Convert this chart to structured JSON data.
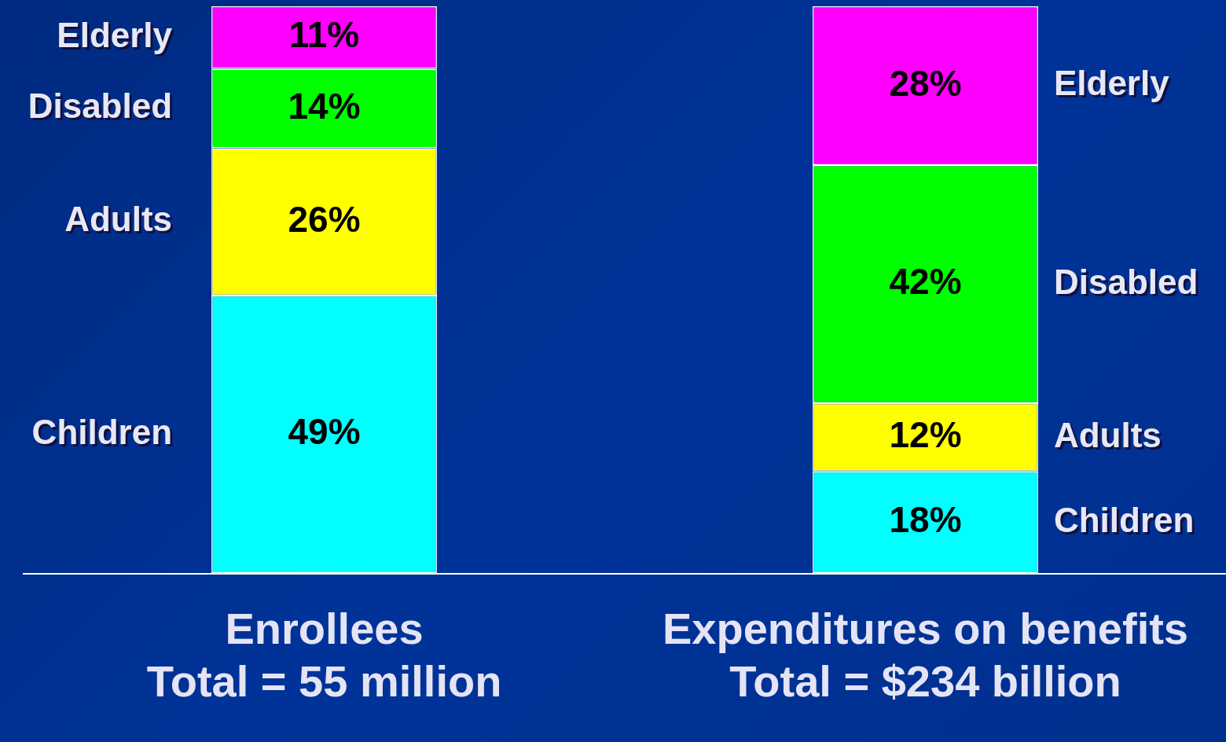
{
  "chart_data": {
    "type": "bar",
    "stacked": true,
    "ylim": [
      0,
      100
    ],
    "tick_labels": "x",
    "categories": [
      "Enrollees\nTotal = 55 million",
      "Expenditures on benefits\nTotal = $234 billion"
    ],
    "series": [
      {
        "name": "Children",
        "color": "#00ffff",
        "values": [
          49,
          18
        ],
        "value_labels": [
          "49%",
          "18%"
        ]
      },
      {
        "name": "Adults",
        "color": "#ffff00",
        "values": [
          26,
          12
        ],
        "value_labels": [
          "26%",
          "12%"
        ]
      },
      {
        "name": "Disabled",
        "color": "#00ff00",
        "values": [
          14,
          42
        ],
        "value_labels": [
          "14%",
          "42%"
        ]
      },
      {
        "name": "Elderly",
        "color": "#ff00ff",
        "values": [
          11,
          28
        ],
        "value_labels": [
          "11%",
          "28%"
        ]
      }
    ]
  }
}
